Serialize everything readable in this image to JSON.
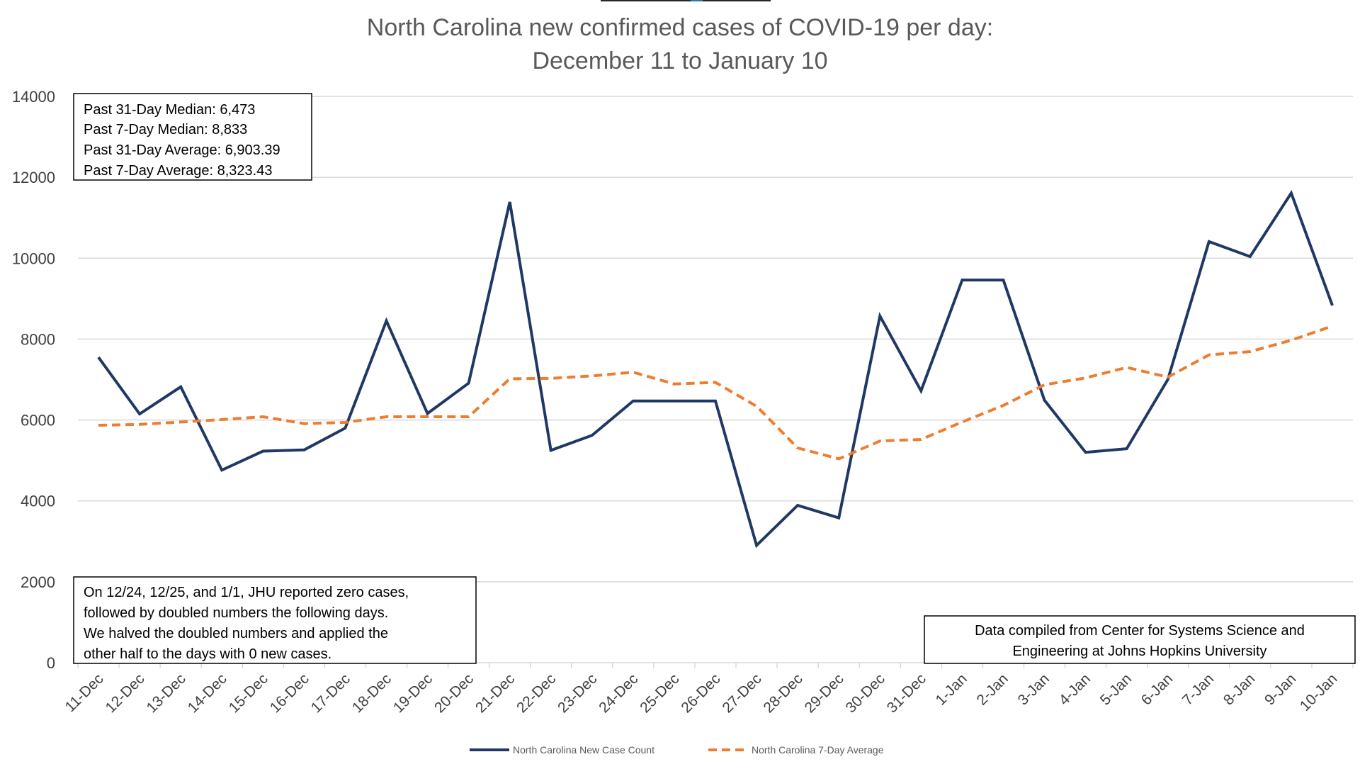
{
  "chart_data": {
    "type": "line",
    "title_lines": [
      "North Carolina new confirmed cases of COVID-19 per day:",
      "December 11 to January 10"
    ],
    "categories": [
      "11-Dec",
      "12-Dec",
      "13-Dec",
      "14-Dec",
      "15-Dec",
      "16-Dec",
      "17-Dec",
      "18-Dec",
      "19-Dec",
      "20-Dec",
      "21-Dec",
      "22-Dec",
      "23-Dec",
      "24-Dec",
      "25-Dec",
      "26-Dec",
      "27-Dec",
      "28-Dec",
      "29-Dec",
      "30-Dec",
      "31-Dec",
      "1-Jan",
      "2-Jan",
      "3-Jan",
      "4-Jan",
      "5-Jan",
      "6-Jan",
      "7-Jan",
      "8-Jan",
      "9-Jan",
      "10-Jan"
    ],
    "series": [
      {
        "name": "North Carolina New Case Count",
        "color": "#1f3864",
        "style": "solid",
        "values": [
          7550,
          6150,
          6820,
          4760,
          5230,
          5260,
          5800,
          8450,
          6160,
          6910,
          11390,
          5250,
          5620,
          6470,
          6470,
          6470,
          2900,
          3890,
          3580,
          8570,
          6720,
          9460,
          9460,
          6490,
          5200,
          5290,
          7000,
          10410,
          10040,
          11610,
          8833
        ]
      },
      {
        "name": "North Carolina 7-Day Average",
        "color": "#ed7d31",
        "style": "dashed",
        "values": [
          5870,
          5890,
          5950,
          6010,
          6080,
          5910,
          5940,
          6080,
          6080,
          6080,
          7020,
          7030,
          7090,
          7180,
          6890,
          6930,
          6340,
          5310,
          5040,
          5480,
          5520,
          5950,
          6360,
          6870,
          7040,
          7300,
          7060,
          7610,
          7690,
          7970,
          8323.43
        ]
      }
    ],
    "yticks": [
      "0",
      "2000",
      "4000",
      "6000",
      "8000",
      "10000",
      "12000",
      "14000"
    ],
    "ylim": [
      0,
      14000
    ],
    "grid": true,
    "legend_position": "bottom",
    "stats_box": [
      "Past 31-Day Median: 6,473",
      "Past 7-Day Median: 8,833",
      "Past 31-Day Average: 6,903.39",
      "Past 7-Day Average: 8,323.43"
    ],
    "note_box": [
      "On 12/24, 12/25, and 1/1, JHU reported zero cases,",
      "followed by doubled numbers the following days.",
      "We halved the doubled numbers and applied the",
      "other half to the days with 0 new cases."
    ],
    "source_box": [
      "Data compiled from Center for Systems Science and",
      "Engineering at Johns Hopkins University"
    ]
  }
}
